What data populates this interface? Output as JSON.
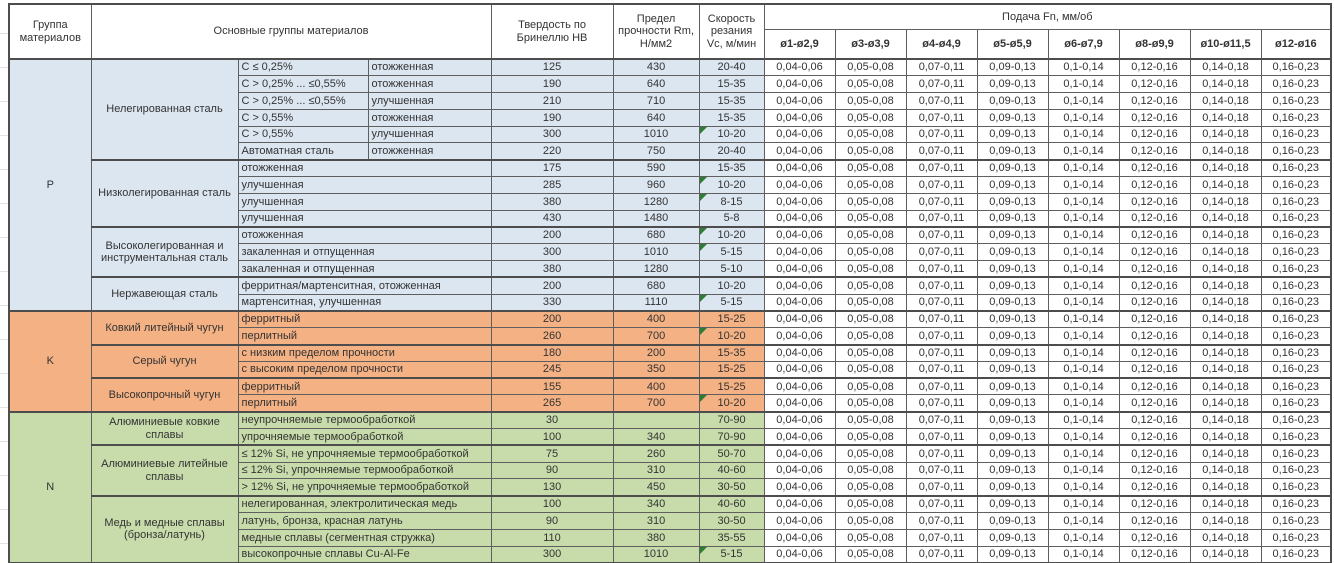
{
  "colors": {
    "group_p": "#dce6f1",
    "group_k": "#f4b183",
    "group_n": "#c8dcab",
    "flag": "#2e7d32",
    "border": "#5f5f5f"
  },
  "table": {
    "headers": {
      "group": "Группа материалов",
      "main_groups": "Основные группы материалов",
      "hardness": "Твердость по Бринеллю НВ",
      "strength": "Предел прочности Rm, Н/мм2",
      "speed": "Скорость резания Vc, м/мин",
      "feed": "Подача Fn, мм/об",
      "feed_columns": [
        "ø1-ø2,9",
        "ø3-ø3,9",
        "ø4-ø4,9",
        "ø5-ø5,9",
        "ø6-ø7,9",
        "ø8-ø9,9",
        "ø10-ø11,5",
        "ø12-ø16"
      ]
    },
    "feed_values": [
      "0,04-0,06",
      "0,05-0,08",
      "0,07-0,11",
      "0,09-0,13",
      "0,1-0,14",
      "0,12-0,16",
      "0,14-0,18",
      "0,16-0,23"
    ],
    "groups": [
      {
        "letter": "P",
        "color": "#dce6f1",
        "subgroups": [
          {
            "name": "Нелегированная сталь",
            "rows": [
              {
                "spec": "C ≤ 0,25%",
                "condition": "отожженная",
                "hb": "125",
                "rm": "430",
                "vc": "20-40",
                "flag": false
              },
              {
                "spec": "C > 0,25% ... ≤0,55%",
                "condition": "отожженная",
                "hb": "190",
                "rm": "640",
                "vc": "15-35",
                "flag": false
              },
              {
                "spec": "C > 0,25% ... ≤0,55%",
                "condition": "улучшенная",
                "hb": "210",
                "rm": "710",
                "vc": "15-35",
                "flag": false
              },
              {
                "spec": "C > 0,55%",
                "condition": "отожженная",
                "hb": "190",
                "rm": "640",
                "vc": "15-35",
                "flag": false
              },
              {
                "spec": "C > 0,55%",
                "condition": "улучшенная",
                "hb": "300",
                "rm": "1010",
                "vc": "10-20",
                "flag": true
              },
              {
                "spec": "Автоматная сталь",
                "condition": "отожженная",
                "hb": "220",
                "rm": "750",
                "vc": "20-40",
                "flag": false
              }
            ]
          },
          {
            "name": "Низколегированная сталь",
            "rows": [
              {
                "desc": "отожженная",
                "hb": "175",
                "rm": "590",
                "vc": "15-35",
                "flag": false
              },
              {
                "desc": "улучшенная",
                "hb": "285",
                "rm": "960",
                "vc": "10-20",
                "flag": true
              },
              {
                "desc": "улучшенная",
                "hb": "380",
                "rm": "1280",
                "vc": "8-15",
                "flag": true
              },
              {
                "desc": "улучшенная",
                "hb": "430",
                "rm": "1480",
                "vc": "5-8",
                "flag": false
              }
            ]
          },
          {
            "name": "Высоколегированная и инструментальная сталь",
            "rows": [
              {
                "desc": "отожженная",
                "hb": "200",
                "rm": "680",
                "vc": "10-20",
                "flag": true
              },
              {
                "desc": "закаленная и отпущенная",
                "hb": "300",
                "rm": "1010",
                "vc": "5-15",
                "flag": true
              },
              {
                "desc": "закаленная и отпущенная",
                "hb": "380",
                "rm": "1280",
                "vc": "5-10",
                "flag": false
              }
            ]
          },
          {
            "name": "Нержавеющая сталь",
            "rows": [
              {
                "desc": "ферритная/мартенситная, отожженная",
                "hb": "200",
                "rm": "680",
                "vc": "10-20",
                "flag": false
              },
              {
                "desc": "мартенситная, улучшенная",
                "hb": "330",
                "rm": "1110",
                "vc": "5-15",
                "flag": true
              }
            ]
          }
        ]
      },
      {
        "letter": "K",
        "color": "#f4b183",
        "subgroups": [
          {
            "name": "Ковкий литейный чугун",
            "rows": [
              {
                "desc": "ферритный",
                "hb": "200",
                "rm": "400",
                "vc": "15-25",
                "flag": false
              },
              {
                "desc": "перлитный",
                "hb": "260",
                "rm": "700",
                "vc": "10-20",
                "flag": true
              }
            ]
          },
          {
            "name": "Серый чугун",
            "rows": [
              {
                "desc": "с низким пределом прочности",
                "hb": "180",
                "rm": "200",
                "vc": "15-35",
                "flag": false
              },
              {
                "desc": "с высоким пределом прочности",
                "hb": "245",
                "rm": "350",
                "vc": "15-25",
                "flag": false
              }
            ]
          },
          {
            "name": "Высокопрочный чугун",
            "rows": [
              {
                "desc": "ферритный",
                "hb": "155",
                "rm": "400",
                "vc": "15-25",
                "flag": false
              },
              {
                "desc": "перлитный",
                "hb": "265",
                "rm": "700",
                "vc": "10-20",
                "flag": true
              }
            ]
          }
        ]
      },
      {
        "letter": "N",
        "color": "#c8dcab",
        "subgroups": [
          {
            "name": "Алюминиевые ковкие сплавы",
            "rows": [
              {
                "desc": "неупрочняемые термообработкой",
                "hb": "30",
                "rm": "",
                "vc": "70-90",
                "flag": false
              },
              {
                "desc": "упрочняемые термообработкой",
                "hb": "100",
                "rm": "340",
                "vc": "70-90",
                "flag": false
              }
            ]
          },
          {
            "name": "Алюминиевые литейные сплавы",
            "rows": [
              {
                "desc": "≤ 12% Si, не упрочняемые термообработкой",
                "hb": "75",
                "rm": "260",
                "vc": "50-70",
                "flag": false
              },
              {
                "desc": "≤ 12% Si, упрочняемые термообработкой",
                "hb": "90",
                "rm": "310",
                "vc": "40-60",
                "flag": false
              },
              {
                "desc": "> 12% Si, не упрочняемые термообработкой",
                "hb": "130",
                "rm": "450",
                "vc": "30-50",
                "flag": false
              }
            ]
          },
          {
            "name": "Медь и медные сплавы (бронза/латунь)",
            "rows": [
              {
                "desc": "нелегированная, электролитическая медь",
                "hb": "100",
                "rm": "340",
                "vc": "40-60",
                "flag": false
              },
              {
                "desc": "латунь, бронза, красная латунь",
                "hb": "90",
                "rm": "310",
                "vc": "30-50",
                "flag": false
              },
              {
                "desc": "медные сплавы (сегментная стружка)",
                "hb": "110",
                "rm": "380",
                "vc": "35-55",
                "flag": false
              },
              {
                "desc": "высокопрочные сплавы Cu-Al-Fe",
                "hb": "300",
                "rm": "1010",
                "vc": "5-15",
                "flag": true
              }
            ]
          }
        ]
      }
    ]
  }
}
